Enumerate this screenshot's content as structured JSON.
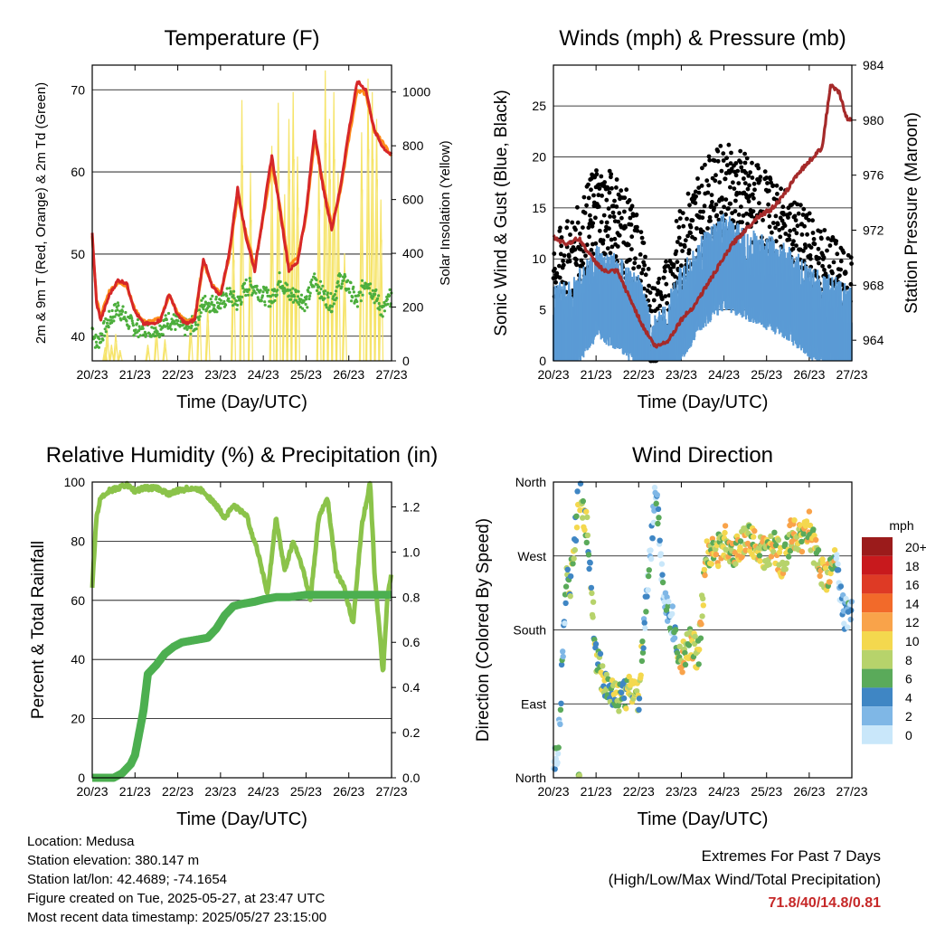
{
  "chart_data": [
    {
      "type": "line",
      "title": "Temperature (F)",
      "xlabel": "Time (Day/UTC)",
      "ylabel": "2m & 9m T (Red, Orange) & 2m Td (Green)",
      "ylabel_right": "Solar Insolation (Yellow)",
      "x_ticks": [
        "20/23",
        "21/23",
        "22/23",
        "23/23",
        "24/23",
        "25/23",
        "26/23",
        "27/23"
      ],
      "ylim": [
        37,
        73
      ],
      "y_ticks": [
        40,
        50,
        60,
        70
      ],
      "y2lim": [
        0,
        1100
      ],
      "y2_ticks": [
        0,
        200,
        400,
        600,
        800,
        1000
      ],
      "grid": "horizontal",
      "colors": {
        "t2m": "#d62728",
        "t9m": "#ff8c1a",
        "td": "#4cae3c",
        "solar": "#f6e46a"
      },
      "series": [
        {
          "x": [
            0,
            0.1,
            0.2,
            0.4,
            0.6,
            0.8,
            1,
            1.2,
            1.4,
            1.6,
            1.8,
            2,
            2.2,
            2.4,
            2.6,
            2.8,
            3,
            3.2,
            3.4,
            3.6,
            3.8,
            4,
            4.2,
            4.4,
            4.6,
            4.8,
            5,
            5.2,
            5.4,
            5.6,
            5.8,
            6,
            6.2,
            6.4,
            6.6,
            6.8,
            7
          ],
          "values": [
            52.5,
            44,
            42,
            45,
            46.8,
            46.5,
            43,
            41.5,
            41.5,
            42,
            45.2,
            42.5,
            41.5,
            42,
            49.5,
            46,
            45,
            50,
            58,
            52,
            48,
            55,
            62,
            55,
            48,
            49,
            55,
            65,
            58,
            53,
            58,
            65,
            71,
            70,
            65,
            63,
            62
          ]
        },
        {
          "x": [
            0,
            0.1,
            0.2,
            0.4,
            0.6,
            0.8,
            1,
            1.2,
            1.4,
            1.6,
            1.8,
            2,
            2.2,
            2.4,
            2.6,
            2.8,
            3,
            3.2,
            3.4,
            3.6,
            3.8,
            4,
            4.2,
            4.4,
            4.6,
            4.8,
            5,
            5.2,
            5.4,
            5.6,
            5.8,
            6,
            6.2,
            6.4,
            6.6,
            6.8,
            7
          ],
          "values": [
            52,
            44.5,
            42.5,
            45.5,
            46.5,
            46.2,
            43.2,
            41.8,
            41.8,
            42.2,
            45,
            42.8,
            41.8,
            42.3,
            49,
            46.3,
            45.3,
            49.5,
            57,
            52.5,
            48.5,
            54.5,
            61,
            55.5,
            48.5,
            49.5,
            54.5,
            64,
            58.5,
            53.5,
            57.5,
            64,
            70,
            69.5,
            65,
            63.5,
            62
          ]
        },
        {
          "x": [
            0,
            0.1,
            0.2,
            0.4,
            0.6,
            0.8,
            1,
            1.2,
            1.4,
            1.6,
            1.8,
            2,
            2.2,
            2.4,
            2.6,
            2.8,
            3,
            3.2,
            3.4,
            3.6,
            3.8,
            4,
            4.2,
            4.4,
            4.6,
            4.8,
            5,
            5.2,
            5.4,
            5.6,
            5.8,
            6,
            6.2,
            6.4,
            6.6,
            6.8,
            7
          ],
          "values": [
            41,
            39,
            40,
            42,
            43.5,
            42,
            41,
            41,
            41,
            41,
            42,
            41.5,
            41,
            41.5,
            44,
            44,
            44,
            45,
            44,
            46,
            46,
            45,
            44.5,
            47,
            45,
            45,
            44,
            47,
            45,
            44,
            47,
            46,
            44,
            47,
            45,
            43,
            45
          ]
        },
        {
          "x": [
            0.3,
            0.35,
            0.45,
            0.55,
            0.65,
            1.3,
            1.5,
            1.7,
            2.3,
            2.5,
            2.7,
            3.3,
            3.5,
            3.7,
            4.2,
            4.35,
            4.5,
            4.6,
            4.7,
            4.8,
            5.3,
            5.45,
            5.55,
            5.65,
            5.75,
            5.9,
            6.3,
            6.45,
            6.55,
            6.65,
            6.75
          ],
          "values": [
            50,
            120,
            60,
            100,
            40,
            60,
            130,
            80,
            150,
            310,
            200,
            500,
            970,
            700,
            800,
            960,
            620,
            900,
            1000,
            760,
            750,
            1080,
            900,
            1000,
            700,
            400,
            850,
            1050,
            1000,
            900,
            600
          ]
        }
      ]
    },
    {
      "type": "scatter",
      "title": "Winds (mph) & Pressure (mb)",
      "xlabel": "Time (Day/UTC)",
      "ylabel": "Sonic Wind & Gust (Blue, Black)",
      "ylabel_right": "Station Pressure (Maroon)",
      "x_ticks": [
        "20/23",
        "21/23",
        "22/23",
        "23/23",
        "24/23",
        "25/23",
        "26/23",
        "27/23"
      ],
      "ylim": [
        0,
        29
      ],
      "y_ticks": [
        0,
        5,
        10,
        15,
        20,
        25
      ],
      "y2lim": [
        962.5,
        984
      ],
      "y2_ticks": [
        964,
        968,
        972,
        976,
        980,
        984
      ],
      "grid": "horizontal",
      "colors": {
        "wind": "#5b9bd5",
        "gust": "#000000",
        "pressure": "#a52a2a"
      },
      "series": [
        {
          "x": [
            0,
            0.5,
            1,
            1.5,
            2,
            2.3,
            2.6,
            3,
            3.5,
            4,
            4.5,
            5,
            5.5,
            6,
            6.5,
            7
          ],
          "values": [
            4,
            5,
            8,
            7,
            5,
            1,
            2,
            6,
            9,
            11,
            10,
            9,
            8,
            6,
            5,
            4
          ]
        },
        {
          "x": [
            0,
            0.5,
            1,
            1.5,
            2,
            2.3,
            2.6,
            3,
            3.5,
            4,
            4.5,
            5,
            5.5,
            6,
            6.5,
            7
          ],
          "values": [
            8,
            10,
            15,
            14,
            10,
            3,
            5,
            11,
            15,
            17,
            16,
            14,
            12,
            10,
            8,
            6
          ]
        },
        {
          "x": [
            0,
            0.3,
            0.6,
            0.9,
            1.2,
            1.5,
            1.8,
            2.1,
            2.4,
            2.7,
            3,
            3.3,
            3.6,
            3.9,
            4.2,
            4.5,
            4.8,
            5.1,
            5.4,
            5.7,
            6,
            6.3,
            6.5,
            6.7,
            6.9,
            7
          ],
          "values": [
            971.5,
            971,
            971.4,
            970,
            969,
            969,
            967,
            965,
            963.5,
            964,
            965.5,
            966.5,
            968,
            969.5,
            971,
            972,
            973,
            973.5,
            974.5,
            976,
            977,
            978,
            982.5,
            982,
            980,
            980
          ]
        }
      ]
    },
    {
      "type": "line",
      "title": "Relative Humidity (%) & Precipitation (in)",
      "xlabel": "Time (Day/UTC)",
      "ylabel": "Percent & Total Rainfall",
      "x_ticks": [
        "20/23",
        "21/23",
        "22/23",
        "23/23",
        "24/23",
        "25/23",
        "26/23",
        "27/23"
      ],
      "ylim": [
        0,
        100
      ],
      "y_ticks": [
        0,
        20,
        40,
        60,
        80,
        100
      ],
      "y2lim": [
        0,
        1.31
      ],
      "y2_ticks": [
        0.0,
        0.2,
        0.4,
        0.6,
        0.8,
        1.0,
        1.2
      ],
      "grid": "horizontal",
      "colors": {
        "rh": "#8bc34a",
        "precip": "#4caf50"
      },
      "series": [
        {
          "x": [
            0,
            0.1,
            0.2,
            0.4,
            0.6,
            0.8,
            1,
            1.2,
            1.5,
            1.8,
            2,
            2.3,
            2.6,
            2.9,
            3.1,
            3.3,
            3.6,
            3.9,
            4.1,
            4.3,
            4.5,
            4.7,
            4.9,
            5.1,
            5.3,
            5.5,
            5.7,
            5.9,
            6.1,
            6.3,
            6.5,
            6.6,
            6.8,
            6.9,
            7
          ],
          "values": [
            65,
            88,
            95,
            97,
            98,
            99,
            97,
            98,
            98,
            96,
            97,
            98,
            97,
            92,
            88,
            92,
            89,
            75,
            62,
            88,
            70,
            80,
            72,
            60,
            88,
            95,
            70,
            64,
            52,
            85,
            100,
            70,
            35,
            60,
            70
          ]
        },
        {
          "x": [
            0,
            0.3,
            0.5,
            0.7,
            0.9,
            1,
            1.1,
            1.2,
            1.3,
            1.5,
            1.7,
            1.9,
            2.1,
            2.4,
            2.7,
            2.9,
            3.1,
            3.3,
            3.5,
            3.8,
            4,
            4.3,
            4.6,
            5,
            5.5,
            6,
            6.5,
            7
          ],
          "values": [
            0,
            0,
            0,
            0.02,
            0.06,
            0.1,
            0.2,
            0.3,
            0.46,
            0.5,
            0.55,
            0.58,
            0.6,
            0.61,
            0.62,
            0.66,
            0.72,
            0.76,
            0.77,
            0.78,
            0.79,
            0.8,
            0.8,
            0.81,
            0.81,
            0.81,
            0.81,
            0.81
          ]
        }
      ]
    },
    {
      "type": "scatter",
      "title": "Wind Direction",
      "xlabel": "Time (Day/UTC)",
      "ylabel": "Direction (Colored By Speed)",
      "x_ticks": [
        "20/23",
        "21/23",
        "22/23",
        "23/23",
        "24/23",
        "25/23",
        "26/23",
        "27/23"
      ],
      "y_ticks": [
        "North",
        "East",
        "South",
        "West",
        "North"
      ],
      "ylim": [
        0,
        360
      ],
      "grid": "horizontal",
      "legend": {
        "title": "mph",
        "placement": "right",
        "labels": [
          "20+",
          "18",
          "16",
          "14",
          "12",
          "10",
          "8",
          "6",
          "4",
          "2",
          "0"
        ],
        "colors": [
          "#9b1b1b",
          "#c8191d",
          "#de3a25",
          "#f26a2a",
          "#f9a34a",
          "#f4d84e",
          "#b7d36b",
          "#5aaa5a",
          "#3f86c4",
          "#7fb7e6",
          "#c9e7fa"
        ]
      },
      "series": [
        {
          "x": [
            0.1,
            0.3,
            0.4,
            0.6,
            0.8,
            1,
            1.2,
            1.4,
            1.6,
            1.8,
            2,
            2.2,
            2.4,
            2.6,
            2.8,
            3,
            3.2,
            3.4,
            3.6,
            3.8,
            4,
            4.2,
            4.4,
            4.6,
            4.8,
            5,
            5.2,
            5.4,
            5.6,
            5.8,
            6,
            6.2,
            6.4,
            6.6,
            6.8
          ],
          "values": [
            20,
            240,
            235,
            350,
            300,
            150,
            115,
            105,
            95,
            110,
            100,
            230,
            350,
            210,
            190,
            145,
            165,
            150,
            280,
            270,
            290,
            275,
            285,
            290,
            285,
            270,
            280,
            260,
            300,
            290,
            305,
            260,
            240,
            270,
            200
          ]
        }
      ]
    }
  ],
  "info": {
    "location": "Location: Medusa",
    "elevation": "Station elevation: 380.147 m",
    "latlon": "Station lat/lon: 42.4689; -74.1654",
    "created": "Figure created on Tue, 2025-05-27, at 23:47 UTC",
    "recent": "Most recent data timestamp: 2025/05/27 23:15:00"
  },
  "extremes": {
    "line1": "Extremes For Past 7 Days",
    "line2": "(High/Low/Max Wind/Total Precipitation)",
    "values": "71.8/40/14.8/0.81"
  }
}
